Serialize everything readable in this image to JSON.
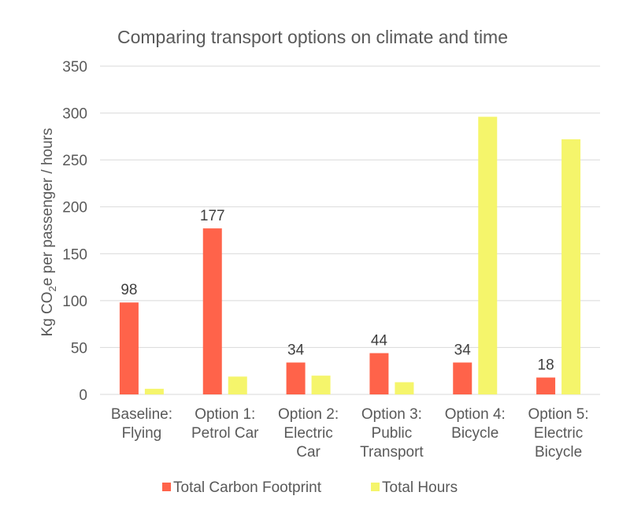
{
  "chart_data": {
    "type": "bar",
    "title": "Comparing transport options on climate and time",
    "ylabel": "Kg CO₂e per passenger / hours",
    "xlabel": "",
    "ylim": [
      0,
      350
    ],
    "yticks": [
      0,
      50,
      100,
      150,
      200,
      250,
      300,
      350
    ],
    "grid": true,
    "legend_position": "bottom",
    "categories": [
      [
        "Baseline:",
        "Flying"
      ],
      [
        "Option 1:",
        "Petrol Car"
      ],
      [
        "Option 2:",
        "Electric",
        "Car"
      ],
      [
        "Option 3:",
        "Public",
        "Transport"
      ],
      [
        "Option 4:",
        "Bicycle"
      ],
      [
        "Option 5:",
        "Electric",
        "Bicycle"
      ]
    ],
    "series": [
      {
        "name": "Total Carbon Footprint",
        "color": "#ff634a",
        "values": [
          98,
          177,
          34,
          44,
          34,
          18
        ],
        "labels": [
          "98",
          "177",
          "34",
          "44",
          "34",
          "18"
        ]
      },
      {
        "name": "Total Hours",
        "color": "#f5f56b",
        "values": [
          6,
          19,
          20,
          13,
          296,
          272
        ]
      }
    ]
  }
}
